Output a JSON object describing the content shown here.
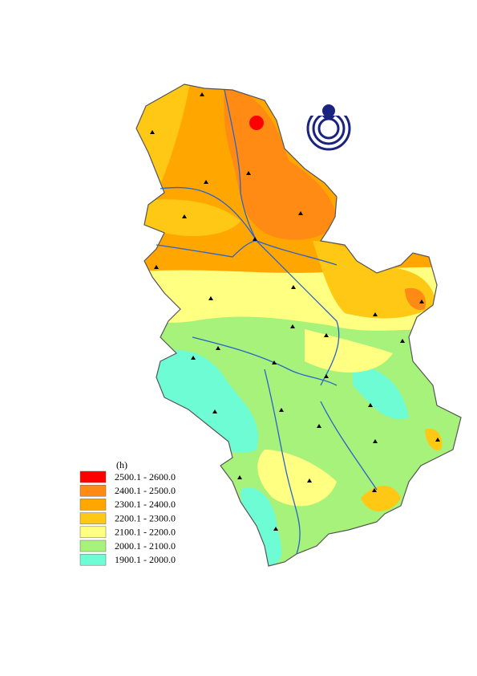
{
  "legend": {
    "title": "(h)",
    "items": [
      {
        "label": "2500.1 - 2600.0",
        "color": "#ff0000"
      },
      {
        "label": "2400.1 - 2500.0",
        "color": "#ff8a14"
      },
      {
        "label": "2300.1 - 2400.0",
        "color": "#ffa600"
      },
      {
        "label": "2200.1 - 2300.0",
        "color": "#ffc814"
      },
      {
        "label": "2100.1 - 2200.0",
        "color": "#ffff82"
      },
      {
        "label": "2000.1 - 2100.0",
        "color": "#a6f27a"
      },
      {
        "label": "1900.1 - 2000.0",
        "color": "#6efcd4"
      }
    ]
  }
}
